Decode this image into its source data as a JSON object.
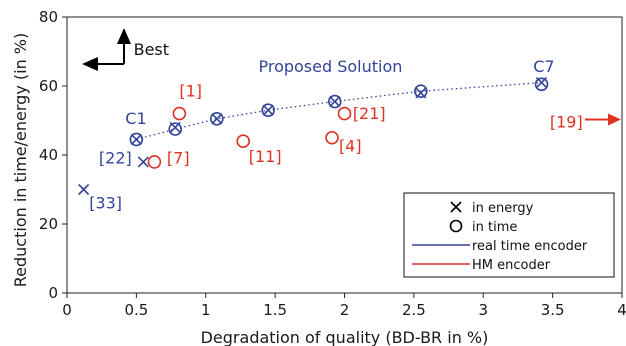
{
  "chart_data": {
    "type": "scatter",
    "title": "",
    "xlabel": "Degradation of quality (BD-BR in %)",
    "ylabel": "Reduction in time/energy (in %)",
    "xlim": [
      0,
      4
    ],
    "ylim": [
      0,
      80
    ],
    "xticks": [
      "0",
      "0.5",
      "1",
      "1.5",
      "2",
      "2.5",
      "3",
      "3.5",
      "4"
    ],
    "yticks": [
      "0",
      "20",
      "40",
      "60",
      "80"
    ],
    "grid": false,
    "legend": {
      "placement": "lower-right",
      "entries": [
        "in energy",
        "in time",
        "real time encoder",
        "HM encoder"
      ]
    },
    "colors": {
      "real_time_encoder": "#33449a",
      "hm_encoder": "#dd3322"
    },
    "series": [
      {
        "name": "real time encoder",
        "marker": "x",
        "metric": "in energy",
        "points": [
          [
            0.12,
            30
          ],
          [
            0.5,
            44.5
          ],
          [
            0.55,
            38
          ],
          [
            0.78,
            48
          ],
          [
            1.08,
            50.5
          ],
          [
            1.45,
            53
          ],
          [
            1.93,
            55.5
          ],
          [
            2.55,
            58
          ],
          [
            3.42,
            61
          ]
        ]
      },
      {
        "name": "real time encoder",
        "marker": "o",
        "metric": "in time",
        "points": [
          [
            0.5,
            44.5
          ],
          [
            0.78,
            47.5
          ],
          [
            1.08,
            50.5
          ],
          [
            1.45,
            53
          ],
          [
            1.93,
            55.5
          ],
          [
            2.55,
            58.5
          ],
          [
            3.42,
            60.5
          ]
        ]
      },
      {
        "name": "HM encoder",
        "marker": "o",
        "metric": "in time",
        "points": [
          [
            0.63,
            38
          ],
          [
            0.81,
            52
          ],
          [
            1.27,
            44
          ],
          [
            1.91,
            45
          ],
          [
            2.0,
            52
          ]
        ]
      }
    ],
    "trendline": {
      "style": "dotted",
      "color": "#33449a",
      "points": [
        [
          0.5,
          44.5
        ],
        [
          0.78,
          47.5
        ],
        [
          1.08,
          50.5
        ],
        [
          1.45,
          53
        ],
        [
          1.93,
          55.5
        ],
        [
          2.55,
          58.5
        ],
        [
          3.42,
          61
        ]
      ]
    },
    "annotations": [
      {
        "text": "Proposed Solution",
        "x": 1.38,
        "y": 64,
        "color": "blue"
      },
      {
        "text": "C1",
        "x": 0.42,
        "y": 49,
        "color": "blue"
      },
      {
        "text": "C7",
        "x": 3.36,
        "y": 64,
        "color": "blue"
      },
      {
        "text": "[22]",
        "x": 0.23,
        "y": 37.5,
        "color": "blue"
      },
      {
        "text": "[33]",
        "x": 0.16,
        "y": 24.5,
        "color": "blue"
      },
      {
        "text": "[1]",
        "x": 0.81,
        "y": 57,
        "color": "red"
      },
      {
        "text": "[7]",
        "x": 0.72,
        "y": 37.5,
        "color": "red"
      },
      {
        "text": "[11]",
        "x": 1.31,
        "y": 38,
        "color": "red"
      },
      {
        "text": "[4]",
        "x": 1.96,
        "y": 41,
        "color": "red"
      },
      {
        "text": "[21]",
        "x": 2.06,
        "y": 50.5,
        "color": "red"
      },
      {
        "text": "[19]",
        "x": 3.48,
        "y": 48,
        "color": "red"
      },
      {
        "text": "Best",
        "x": 0.48,
        "y": 69,
        "color": "black"
      }
    ]
  }
}
